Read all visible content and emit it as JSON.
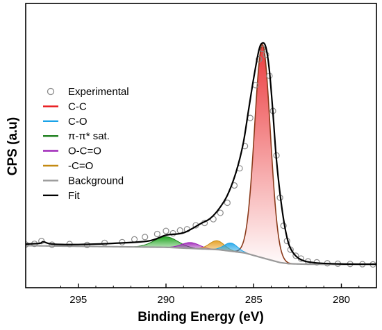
{
  "chart_data": {
    "type": "line",
    "xlabel": "Binding Energy (eV)",
    "ylabel": "CPS (a.u)",
    "xlim": [
      298,
      278
    ],
    "x_reversed": true,
    "y_ticks_shown": false,
    "xticks": [
      295,
      290,
      285,
      280
    ],
    "xtick_labels": [
      "295",
      "290",
      "285",
      "280"
    ],
    "legend_position": "center-left",
    "legend": [
      {
        "label": "Experimental",
        "style": "marker",
        "color": "#8a8a8a"
      },
      {
        "label": "C-C",
        "style": "line",
        "color": "#e8191c"
      },
      {
        "label": "C-O",
        "style": "line",
        "color": "#1aa3e8"
      },
      {
        "label": "π-π* sat.",
        "style": "line",
        "color": "#1a7d1a"
      },
      {
        "label": "O-C=O",
        "style": "line",
        "color": "#9b1fb5"
      },
      {
        "label": "-C=O",
        "style": "line",
        "color": "#c48a12"
      },
      {
        "label": "Background",
        "style": "line",
        "color": "#9a9a9a"
      },
      {
        "label": "Fit",
        "style": "line",
        "color": "#000000"
      }
    ],
    "background": {
      "x": [
        298,
        290,
        287,
        285.5,
        284.5,
        283.5,
        283,
        282,
        280,
        278
      ],
      "y": [
        0.135,
        0.128,
        0.118,
        0.104,
        0.083,
        0.063,
        0.058,
        0.056,
        0.055,
        0.055
      ]
    },
    "fit": {
      "x": [
        298,
        297.2,
        297,
        296.5,
        295,
        293,
        291,
        290,
        289,
        288,
        287.5,
        287,
        286.5,
        286,
        285.6,
        285.3,
        285,
        284.7,
        284.5,
        284.3,
        284.1,
        283.9,
        283.7,
        283.4,
        283.1,
        282.8,
        282.3,
        281.5,
        280,
        278
      ],
      "y": [
        0.142,
        0.145,
        0.152,
        0.142,
        0.14,
        0.145,
        0.155,
        0.18,
        0.19,
        0.23,
        0.25,
        0.29,
        0.35,
        0.45,
        0.57,
        0.71,
        0.85,
        0.97,
        1.0,
        0.98,
        0.88,
        0.7,
        0.5,
        0.3,
        0.17,
        0.11,
        0.075,
        0.062,
        0.057,
        0.056
      ]
    },
    "experimental": {
      "x": [
        298,
        297.5,
        297.1,
        296.5,
        295.5,
        294.5,
        293.5,
        292.5,
        291.8,
        291.2,
        290.5,
        290,
        289.6,
        289.2,
        288.8,
        288.3,
        287.8,
        287.3,
        286.9,
        286.5,
        286.1,
        285.8,
        285.5,
        285.2,
        284.9,
        284.7,
        284.5,
        284.3,
        284.1,
        283.9,
        283.7,
        283.5,
        283.3,
        283.1,
        282.9,
        282.6,
        282.3,
        281.9,
        281.4,
        280.8,
        280.2,
        279.5,
        278.8,
        278.2
      ],
      "y": [
        0.14,
        0.143,
        0.155,
        0.139,
        0.142,
        0.138,
        0.147,
        0.15,
        0.162,
        0.172,
        0.185,
        0.198,
        0.188,
        0.2,
        0.205,
        0.222,
        0.232,
        0.248,
        0.275,
        0.318,
        0.392,
        0.465,
        0.56,
        0.68,
        0.82,
        0.93,
        0.975,
        0.95,
        0.86,
        0.71,
        0.52,
        0.34,
        0.22,
        0.155,
        0.118,
        0.092,
        0.08,
        0.068,
        0.064,
        0.06,
        0.058,
        0.057,
        0.056,
        0.055
      ]
    },
    "components": [
      {
        "name": "C-C",
        "center": 284.5,
        "fwhm": 1.05,
        "height": 0.91,
        "color": "#e8191c",
        "edge_color": "#8a3a1a"
      },
      {
        "name": "C-O",
        "center": 286.3,
        "fwhm": 0.9,
        "height": 0.035,
        "color": "#1aa3e8"
      },
      {
        "name": "π-π* sat.",
        "center": 290.0,
        "fwhm": 1.6,
        "height": 0.045,
        "color": "#1a7d1a"
      },
      {
        "name": "O-C=O",
        "center": 288.6,
        "fwhm": 1.2,
        "height": 0.025,
        "color": "#9b1fb5"
      },
      {
        "name": "-C=O",
        "center": 287.1,
        "fwhm": 1.0,
        "height": 0.038,
        "color": "#c48a12"
      }
    ]
  }
}
